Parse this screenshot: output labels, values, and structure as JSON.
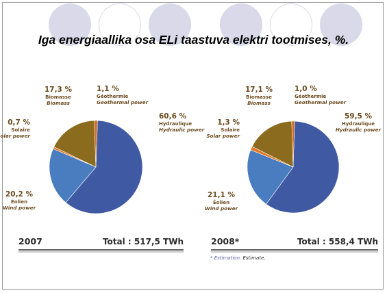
{
  "title": "Iga energiaallika osa ELi taastuva elektri tootmises, %.",
  "colors": {
    "hydraulic": "#3f5aa3",
    "wind": "#4a7dbf",
    "solar": "#e07b2a",
    "biomass": "#8b6c1e",
    "geothermal": "#d2691e",
    "decor": "#d9d9ea",
    "label": "#6b4a1e"
  },
  "chart_data": [
    {
      "type": "pie",
      "year": "2007",
      "total": "Total : 517,5 TWh",
      "slices": [
        {
          "pct": 60.6,
          "label_pct": "60,6 %",
          "fr": "Hydraulique",
          "en": "Hydraulic power",
          "color": "hydraulic"
        },
        {
          "pct": 20.2,
          "label_pct": "20,2 %",
          "fr": "Éolien",
          "en": "Wind power",
          "color": "wind"
        },
        {
          "pct": 0.7,
          "label_pct": "0,7 %",
          "fr": "Solaire",
          "en": "Solar power",
          "color": "solar"
        },
        {
          "pct": 17.3,
          "label_pct": "17,3 %",
          "fr": "Biomasse",
          "en": "Biomass",
          "color": "biomass"
        },
        {
          "pct": 1.1,
          "label_pct": "1,1 %",
          "fr": "Géothermie",
          "en": "Geothermal power",
          "color": "geothermal"
        }
      ]
    },
    {
      "type": "pie",
      "year": "2008*",
      "total": "Total : 558,4 TWh",
      "slices": [
        {
          "pct": 59.5,
          "label_pct": "59,5 %",
          "fr": "Hydraulique",
          "en": "Hydraulic power",
          "color": "hydraulic"
        },
        {
          "pct": 21.1,
          "label_pct": "21,1 %",
          "fr": "Éolien",
          "en": "Wind power",
          "color": "wind"
        },
        {
          "pct": 1.3,
          "label_pct": "1,3 %",
          "fr": "Solaire",
          "en": "Solar power",
          "color": "solar"
        },
        {
          "pct": 17.1,
          "label_pct": "17,1 %",
          "fr": "Biomasse",
          "en": "Biomass",
          "color": "biomass"
        },
        {
          "pct": 1.0,
          "label_pct": "1,0 %",
          "fr": "Géothermie",
          "en": "Geothermal power",
          "color": "geothermal"
        }
      ]
    }
  ],
  "footnote": {
    "fr": "* Estimation.",
    "en": "Estimate."
  }
}
